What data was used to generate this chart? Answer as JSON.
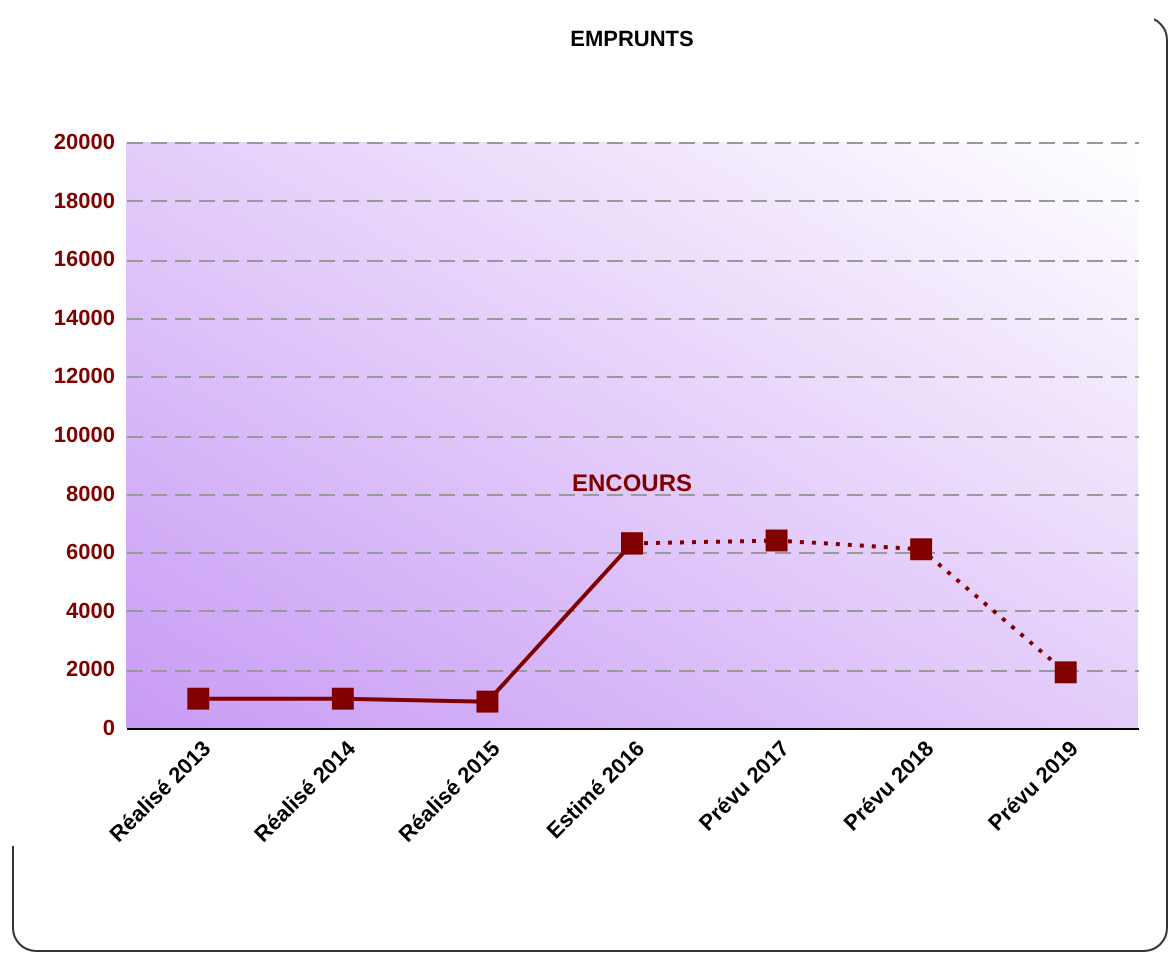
{
  "chart_data": {
    "type": "line",
    "title": "EMPRUNTS",
    "categories": [
      "Réalisé 2013",
      "Réalisé 2014",
      "Réalisé 2015",
      "Estimé 2016",
      "Prévu 2017",
      "Prévu 2018",
      "Prévu 2019"
    ],
    "series": [
      {
        "name": "ENCOURS",
        "color": "#800000",
        "line_style": "solid",
        "values": [
          1000,
          1000,
          900,
          6300,
          null,
          null,
          null
        ]
      },
      {
        "color": "#800000",
        "line_style": "dotted",
        "values": [
          null,
          null,
          null,
          6300,
          6400,
          6100,
          1900
        ]
      }
    ],
    "ylim": [
      0,
      20000
    ],
    "yticks": [
      0,
      2000,
      4000,
      6000,
      8000,
      10000,
      12000,
      14000,
      16000,
      18000,
      20000
    ],
    "grid": "y",
    "marker": "square"
  }
}
